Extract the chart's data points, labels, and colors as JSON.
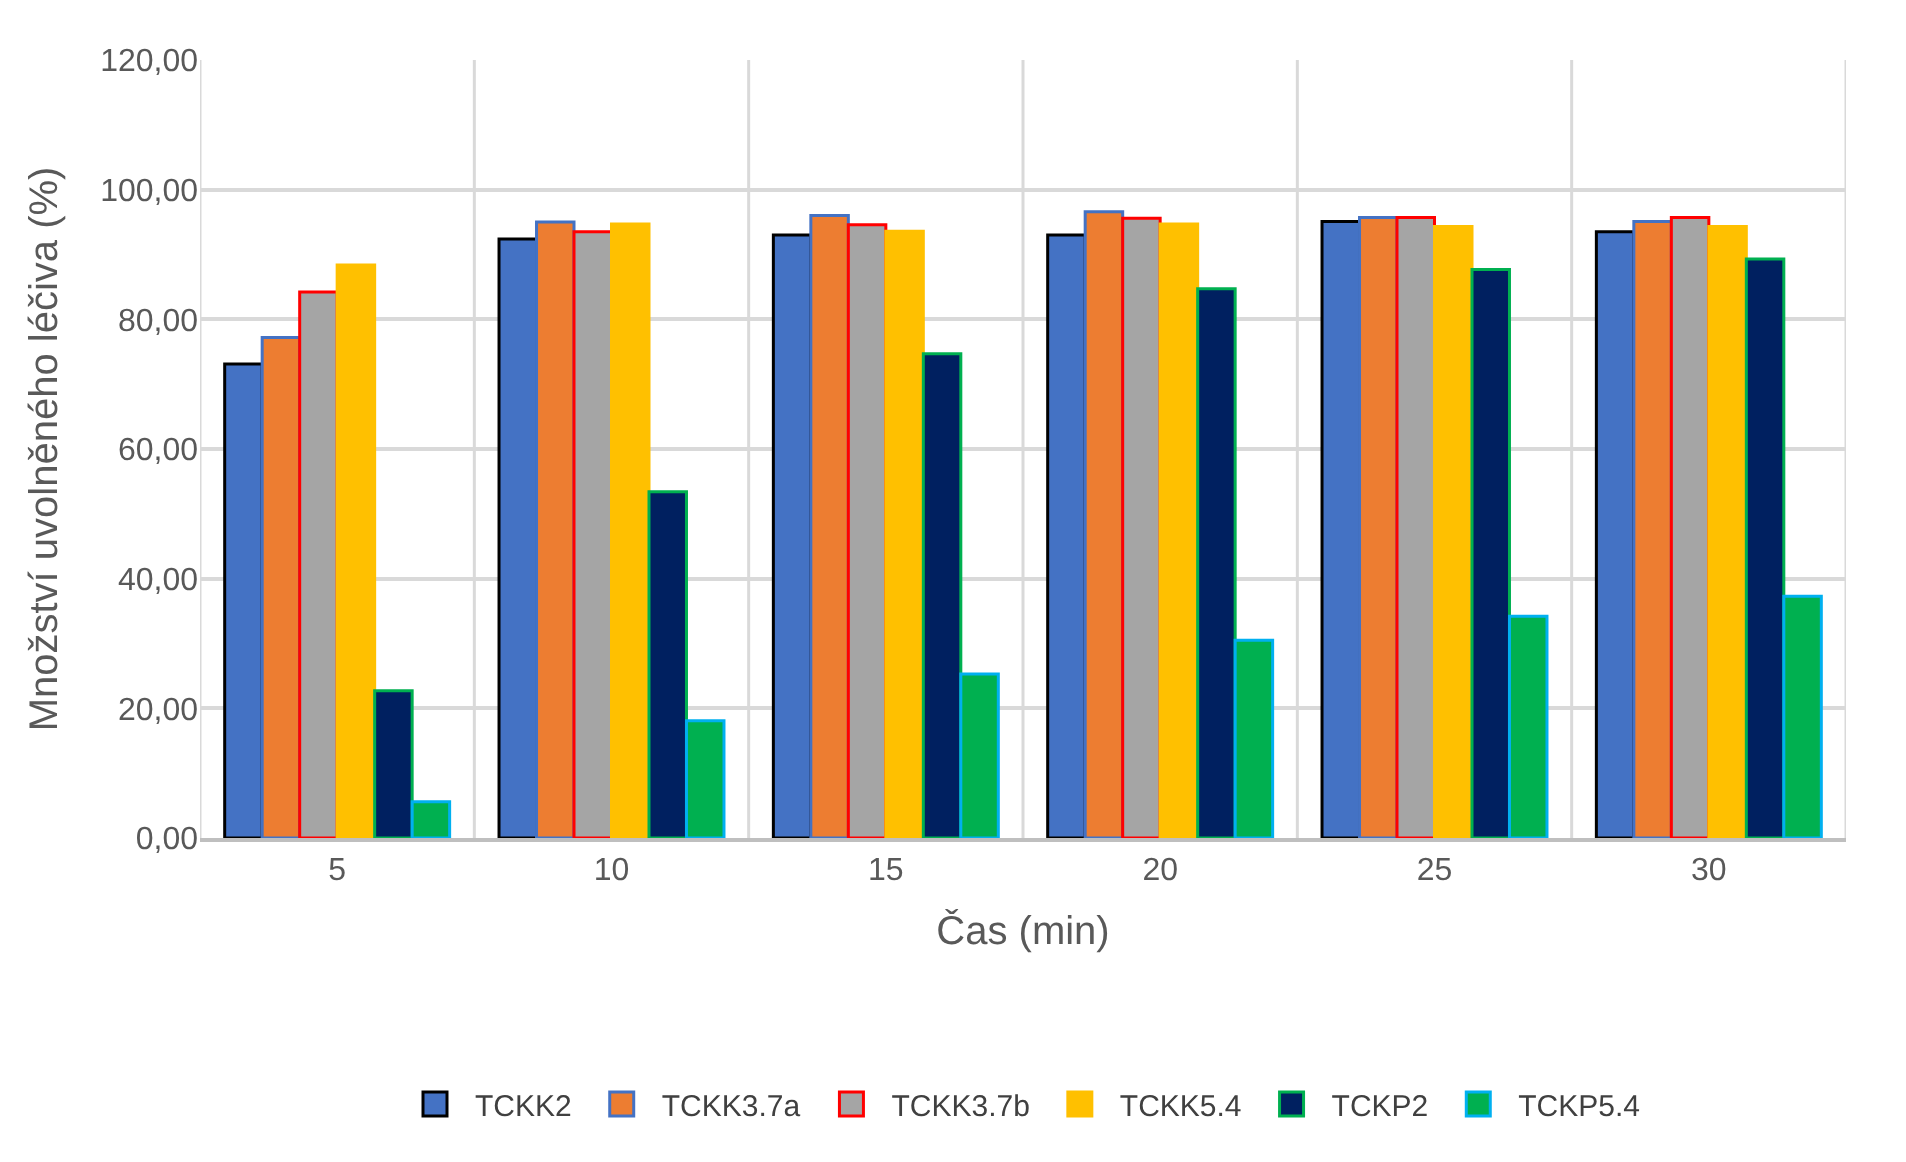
{
  "chart_data": {
    "type": "bar",
    "xlabel": "Čas (min)",
    "ylabel": "Množství uvolněného léčiva (%)",
    "categories": [
      "5",
      "10",
      "15",
      "20",
      "25",
      "30"
    ],
    "series": [
      {
        "name": "TCKK2",
        "color": "#4472c4",
        "values": [
          73.1,
          92.4,
          93.0,
          93.0,
          95.1,
          93.5
        ]
      },
      {
        "name": "TCKK3.7a",
        "color": "#ed7d31",
        "values": [
          77.2,
          95.0,
          96.0,
          96.6,
          95.7,
          95.1
        ]
      },
      {
        "name": "TCKK3.7b",
        "color": "#a5a5a5",
        "values": [
          84.2,
          93.5,
          94.6,
          95.6,
          95.7,
          95.7
        ]
      },
      {
        "name": "TCKK5.4",
        "color": "#ffc000",
        "values": [
          88.4,
          94.7,
          93.6,
          94.7,
          94.3,
          94.3
        ]
      },
      {
        "name": "TCKP2",
        "color": "#002060",
        "values": [
          22.7,
          53.4,
          74.7,
          84.7,
          87.7,
          89.3
        ]
      },
      {
        "name": "TCKP5.4",
        "color": "#00b050",
        "values": [
          5.6,
          18.1,
          25.3,
          30.5,
          34.2,
          37.3
        ]
      }
    ],
    "ylim": [
      0,
      120
    ],
    "yticks": [
      {
        "value": 0,
        "label": "0,00"
      },
      {
        "value": 20,
        "label": "20,00"
      },
      {
        "value": 40,
        "label": "40,00"
      },
      {
        "value": 60,
        "label": "60,00"
      },
      {
        "value": 80,
        "label": "80,00"
      },
      {
        "value": 100,
        "label": "100,00"
      },
      {
        "value": 120,
        "label": "120,00"
      }
    ],
    "grid": true,
    "legend": "bottom"
  }
}
